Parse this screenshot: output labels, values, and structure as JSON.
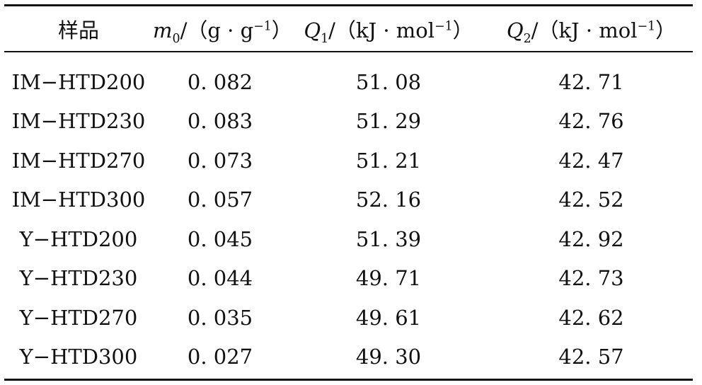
{
  "table": {
    "headers": [
      {
        "plain": "样品"
      },
      {
        "var": "m",
        "sub": "0",
        "unit_pre": "/（g · g",
        "sup": "−1",
        "unit_post": "）"
      },
      {
        "var": "Q",
        "sub": "1",
        "unit_pre": "/（kJ · mol",
        "sup": "−1",
        "unit_post": "）"
      },
      {
        "var": "Q",
        "sub": "2",
        "unit_pre": "/（kJ · mol",
        "sup": "−1",
        "unit_post": "）"
      }
    ],
    "rows": [
      [
        "IM−HTD200",
        "0. 082",
        "51. 08",
        "42. 71"
      ],
      [
        "IM−HTD230",
        "0. 083",
        "51. 29",
        "42. 76"
      ],
      [
        "IM−HTD270",
        "0. 073",
        "51. 21",
        "42. 47"
      ],
      [
        "IM−HTD300",
        "0. 057",
        "52. 16",
        "42. 52"
      ],
      [
        "Y−HTD200",
        "0. 045",
        "51. 39",
        "42. 92"
      ],
      [
        "Y−HTD230",
        "0. 044",
        "49. 71",
        "42. 73"
      ],
      [
        "Y−HTD270",
        "0. 035",
        "49. 61",
        "42. 62"
      ],
      [
        "Y−HTD300",
        "0. 027",
        "49. 30",
        "42. 57"
      ]
    ]
  }
}
